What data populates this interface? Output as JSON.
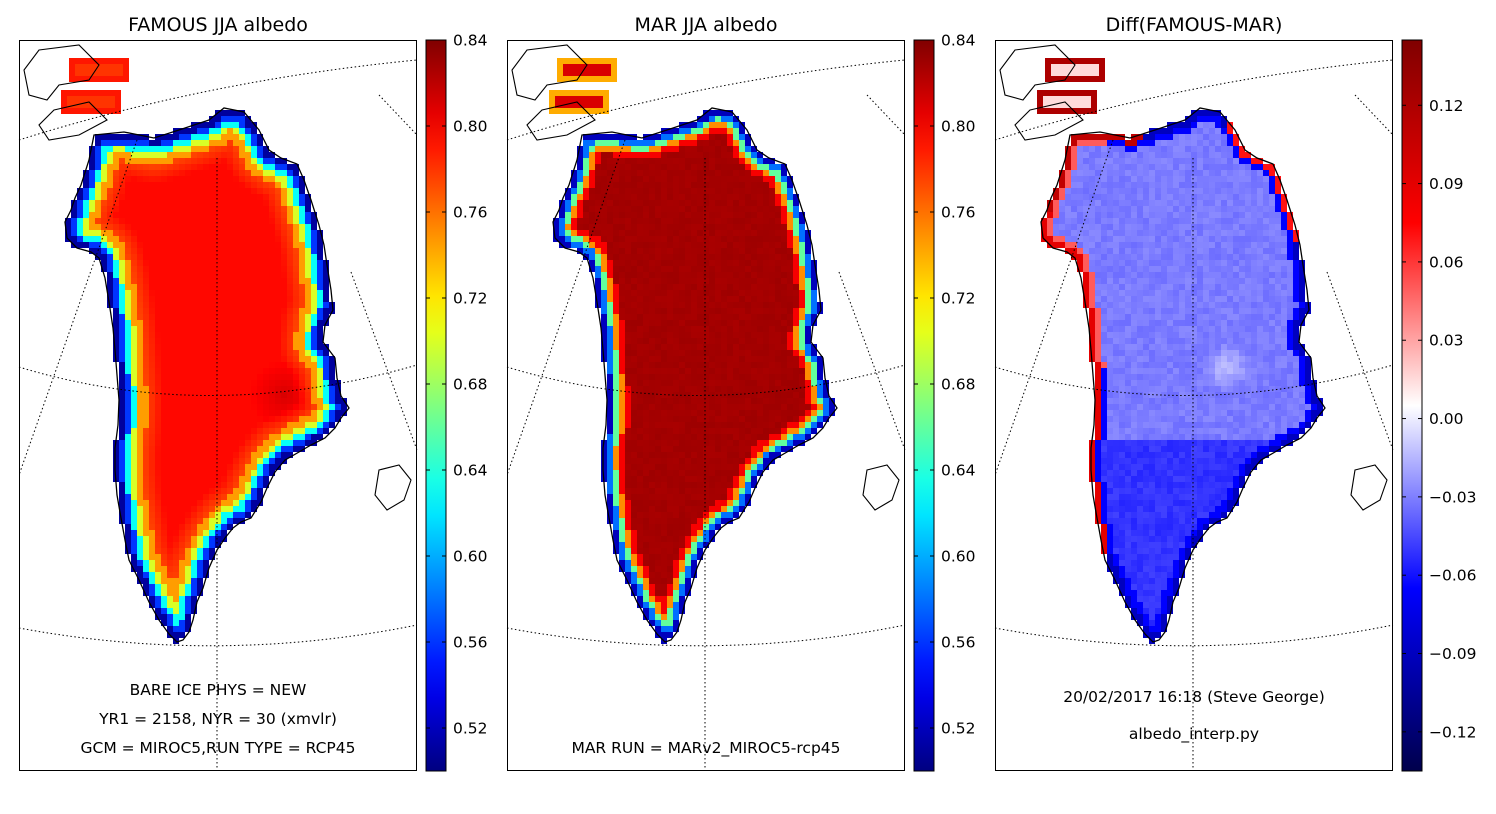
{
  "panels": [
    {
      "id": "famous",
      "title": "FAMOUS JJA albedo",
      "field": "famous",
      "annotations": [
        "BARE ICE PHYS = NEW",
        "YR1 = 2158, NYR = 30 (xmvlr)",
        "GCM = MIROC5,RUN TYPE = RCP45"
      ],
      "colorbar": {
        "cmap": "jet",
        "min": 0.5,
        "max": 0.84,
        "ticks": [
          "0.52",
          "0.56",
          "0.60",
          "0.64",
          "0.68",
          "0.72",
          "0.76",
          "0.80",
          "0.84"
        ]
      }
    },
    {
      "id": "mar",
      "title": "MAR JJA albedo",
      "field": "mar",
      "annotations": [
        "MAR RUN = MARv2_MIROC5-rcp45"
      ],
      "colorbar": {
        "cmap": "jet",
        "min": 0.5,
        "max": 0.84,
        "ticks": [
          "0.52",
          "0.56",
          "0.60",
          "0.64",
          "0.68",
          "0.72",
          "0.76",
          "0.80",
          "0.84"
        ]
      }
    },
    {
      "id": "diff",
      "title": "Diff(FAMOUS-MAR)",
      "field": "diff",
      "annotations": [
        "20/02/2017 16:18 (Steve George)",
        "albedo_interp.py"
      ],
      "colorbar": {
        "cmap": "seismic",
        "min": -0.135,
        "max": 0.145,
        "ticks": [
          "−0.12",
          "−0.09",
          "−0.06",
          "−0.03",
          "0.00",
          "0.03",
          "0.06",
          "0.09",
          "0.12"
        ]
      }
    }
  ],
  "chart_data": {
    "type": "heatmap",
    "description_fields": {
      "famous": {
        "interior_albedo": 0.79,
        "margin_albedo": 0.53,
        "southern_dome_albedo": 0.77
      },
      "mar": {
        "interior_albedo": 0.83,
        "margin_albedo": 0.55
      },
      "diff": {
        "interior_diff": -0.03,
        "margin_diff_west": 0.11,
        "margin_diff_south": -0.08
      }
    },
    "colorbar_ticks": {
      "albedo": [
        0.52,
        0.56,
        0.6,
        0.64,
        0.68,
        0.72,
        0.76,
        0.8,
        0.84
      ],
      "diff": [
        -0.12,
        -0.09,
        -0.06,
        -0.03,
        0.0,
        0.03,
        0.06,
        0.09,
        0.12
      ]
    }
  }
}
